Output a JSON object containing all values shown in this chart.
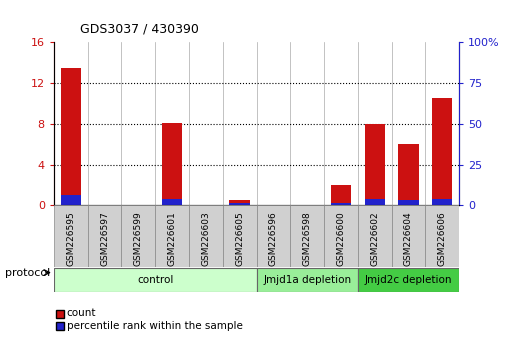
{
  "title": "GDS3037 / 430390",
  "samples": [
    "GSM226595",
    "GSM226597",
    "GSM226599",
    "GSM226601",
    "GSM226603",
    "GSM226605",
    "GSM226596",
    "GSM226598",
    "GSM226600",
    "GSM226602",
    "GSM226604",
    "GSM226606"
  ],
  "counts": [
    13.5,
    0,
    0,
    8.1,
    0,
    0.5,
    0,
    0,
    2.0,
    8.0,
    6.0,
    10.5
  ],
  "percentile_ranks": [
    6.5,
    0,
    0,
    3.8,
    0,
    1.5,
    0,
    0,
    1.5,
    3.8,
    3.2,
    4.0
  ],
  "ylim_left": [
    0,
    16
  ],
  "ylim_right": [
    0,
    100
  ],
  "yticks_left": [
    0,
    4,
    8,
    12,
    16
  ],
  "yticks_right": [
    0,
    25,
    50,
    75,
    100
  ],
  "groups": [
    {
      "label": "control",
      "start": 0,
      "end": 6,
      "color": "#ccffcc"
    },
    {
      "label": "Jmjd1a depletion",
      "start": 6,
      "end": 9,
      "color": "#99ee99"
    },
    {
      "label": "Jmjd2c depletion",
      "start": 9,
      "end": 12,
      "color": "#44cc44"
    }
  ],
  "bar_width": 0.6,
  "count_color": "#cc1111",
  "percentile_color": "#2222cc",
  "background_color": "#ffffff",
  "axis_left_color": "#cc1111",
  "axis_right_color": "#2222cc",
  "legend_items": [
    "count",
    "percentile rank within the sample"
  ],
  "protocol_label": "protocol",
  "xlabel_bg": "#d0d0d0",
  "plot_bg": "#ffffff"
}
